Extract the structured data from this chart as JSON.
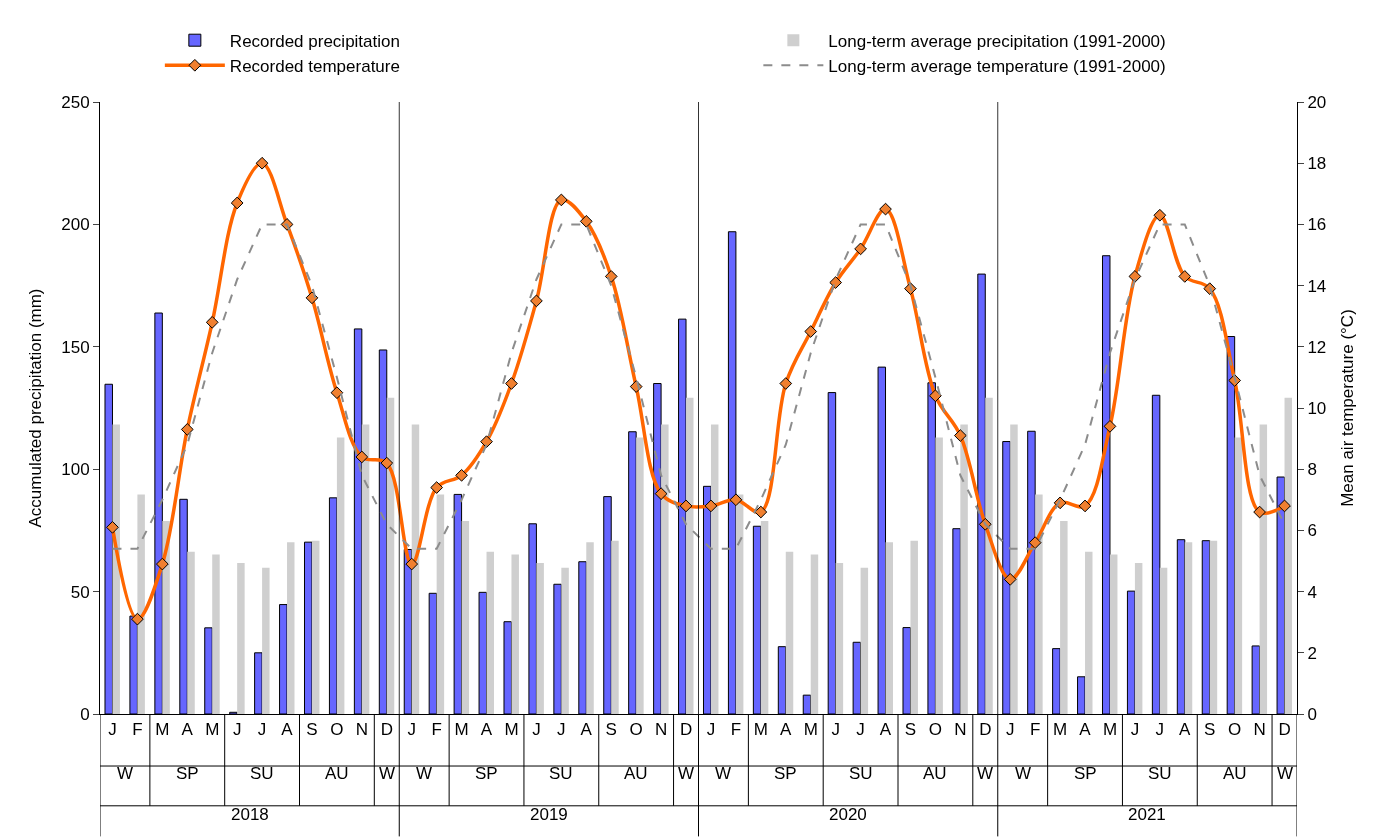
{
  "chart_data": {
    "type": "bar",
    "categories": [
      "J",
      "F",
      "M",
      "A",
      "M",
      "J",
      "J",
      "A",
      "S",
      "O",
      "N",
      "D",
      "J",
      "F",
      "M",
      "A",
      "M",
      "J",
      "J",
      "A",
      "S",
      "O",
      "N",
      "D",
      "J",
      "F",
      "M",
      "A",
      "M",
      "J",
      "J",
      "A",
      "S",
      "O",
      "N",
      "D",
      "J",
      "F",
      "M",
      "A",
      "M",
      "J",
      "J",
      "A",
      "S",
      "O",
      "N",
      "D"
    ],
    "ylabel": "Accumulated precipitation (mm)",
    "y2label": "Mean air temperature (°C)",
    "ylim": [
      0,
      250
    ],
    "yticks": [
      0,
      50,
      100,
      150,
      200,
      250
    ],
    "y2lim": [
      0,
      20
    ],
    "y2ticks": [
      0,
      2,
      4,
      6,
      8,
      10,
      12,
      14,
      16,
      18,
      20
    ],
    "legend": "top",
    "annotations": [
      "W",
      "SP",
      "SU",
      "AU",
      "W",
      "2018",
      "W",
      "SP",
      "SU",
      "AU",
      "W",
      "2019",
      "W",
      "SP",
      "SU",
      "AU",
      "W",
      "2020",
      "W",
      "SP",
      "SU",
      "AU",
      "W",
      "2021"
    ],
    "series": [
      {
        "name": "Recorded precipitation",
        "color": "#6666ff",
        "values": [
          134.7,
          40,
          163.8,
          87.7,
          35.2,
          0.7,
          25,
          44.7,
          70.2,
          88.3,
          157.3,
          148.7,
          67.2,
          49.3,
          89.7,
          49.7,
          37.7,
          77.7,
          53,
          62.2,
          88.8,
          115.3,
          135,
          161.3,
          93,
          197,
          76.7,
          27.5,
          7.7,
          131.3,
          29.3,
          141.7,
          35.3,
          135.3,
          75.7,
          179.7,
          111.3,
          115.5,
          26.7,
          15.2,
          187.2,
          50.2,
          130.2,
          71.2,
          70.8,
          154.2,
          27.8,
          96.8
        ]
      },
      {
        "name": "Long-term average precipitation (1991-2000)",
        "color": "#cfcfcf",
        "values": [
          118.3,
          89.7,
          78.8,
          66.3,
          65.2,
          61.7,
          59.7,
          70.2,
          70.8,
          113,
          118.3,
          129.2,
          118.3,
          89.7,
          78.8,
          66.3,
          65.2,
          61.7,
          59.7,
          70.2,
          70.8,
          113,
          118.3,
          129.2,
          118.3,
          89.7,
          78.8,
          66.3,
          65.2,
          61.7,
          59.7,
          70.2,
          70.8,
          113,
          118.3,
          129.2,
          118.3,
          89.7,
          78.8,
          66.3,
          65.2,
          61.7,
          59.7,
          70.2,
          70.8,
          113,
          118.3,
          129.2
        ]
      },
      {
        "name": "Recorded temperature",
        "type": "line",
        "axis": "y2",
        "color": "#ff6600",
        "marker": "diamond",
        "line_style": "solid",
        "values": [
          6.1,
          3.1,
          4.9,
          9.3,
          12.8,
          16.7,
          18.0,
          16.0,
          13.6,
          10.5,
          8.4,
          8.2,
          4.9,
          7.4,
          7.8,
          8.9,
          10.8,
          13.5,
          16.8,
          16.1,
          14.3,
          10.7,
          7.2,
          6.8,
          6.8,
          7.0,
          6.6,
          10.8,
          12.5,
          14.1,
          15.2,
          16.5,
          13.9,
          10.4,
          9.1,
          6.2,
          4.4,
          5.6,
          6.9,
          6.8,
          9.4,
          14.3,
          16.3,
          14.3,
          13.9,
          10.9,
          6.6,
          6.8
        ]
      },
      {
        "name": "Long-term average temperature (1991-2000)",
        "type": "line",
        "axis": "y2",
        "color": "#8c8c8c",
        "marker": "none",
        "line_style": "dashed",
        "values": [
          5.4,
          5.4,
          7.0,
          8.8,
          11.8,
          14.2,
          16.0,
          16.0,
          14.0,
          11.0,
          7.8,
          6.2,
          5.4,
          5.4,
          7.0,
          8.8,
          11.8,
          14.2,
          16.0,
          16.0,
          14.0,
          11.0,
          7.8,
          6.2,
          5.4,
          5.4,
          7.0,
          8.8,
          11.8,
          14.2,
          16.0,
          16.0,
          14.0,
          11.0,
          7.8,
          6.2,
          5.4,
          5.4,
          7.0,
          8.8,
          11.8,
          14.2,
          16.0,
          16.0,
          14.0,
          11.0,
          7.8,
          6.2
        ]
      }
    ]
  }
}
